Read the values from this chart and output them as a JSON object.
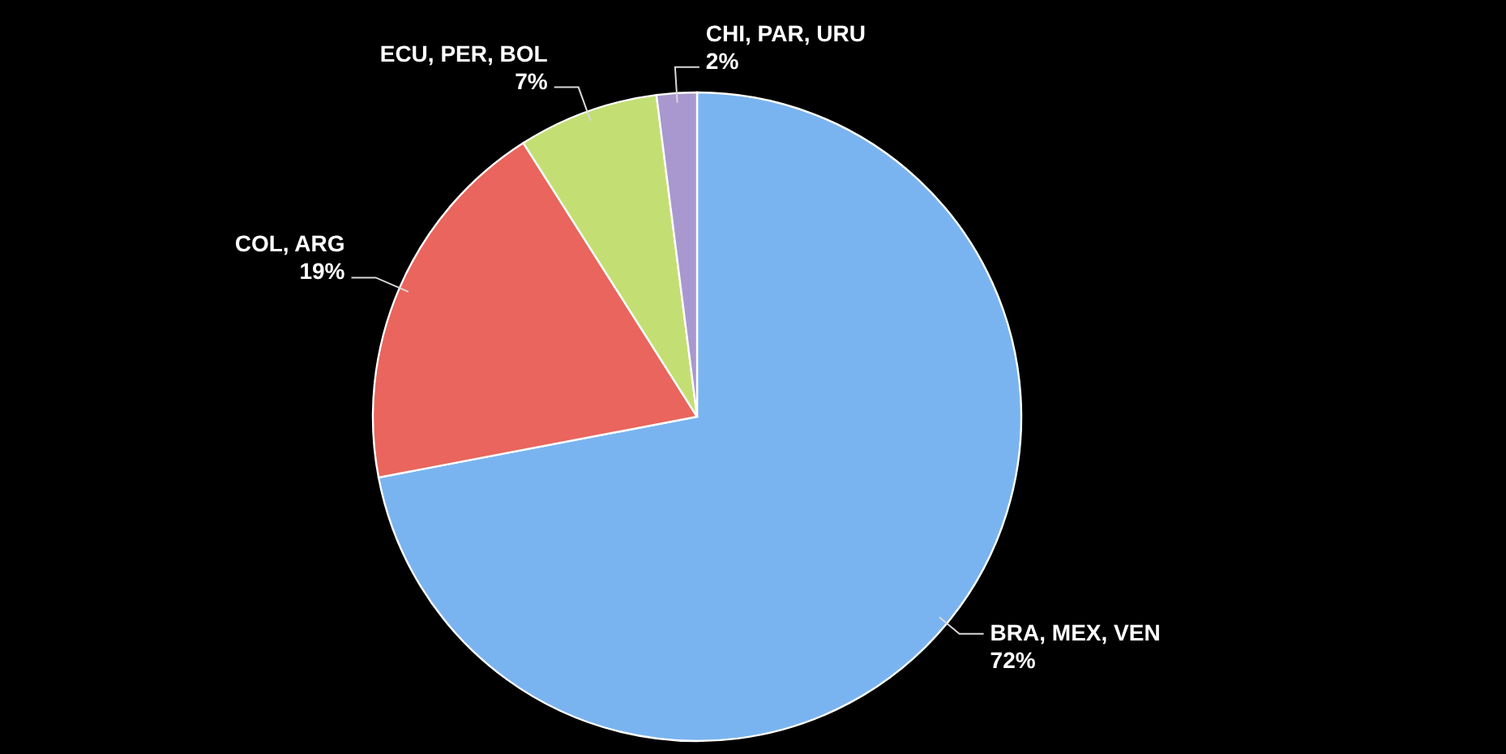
{
  "chart_data": {
    "type": "pie",
    "categories": [
      "BRA, MEX, VEN",
      "COL, ARG",
      "ECU, PER, BOL",
      "CHI, PAR, URU"
    ],
    "values": [
      72,
      19,
      7,
      2
    ],
    "colors": [
      "#7ab4f0",
      "#e9655d",
      "#c3df73",
      "#a898cf"
    ],
    "value_labels": [
      "72%",
      "19%",
      "7%",
      "2%"
    ]
  }
}
